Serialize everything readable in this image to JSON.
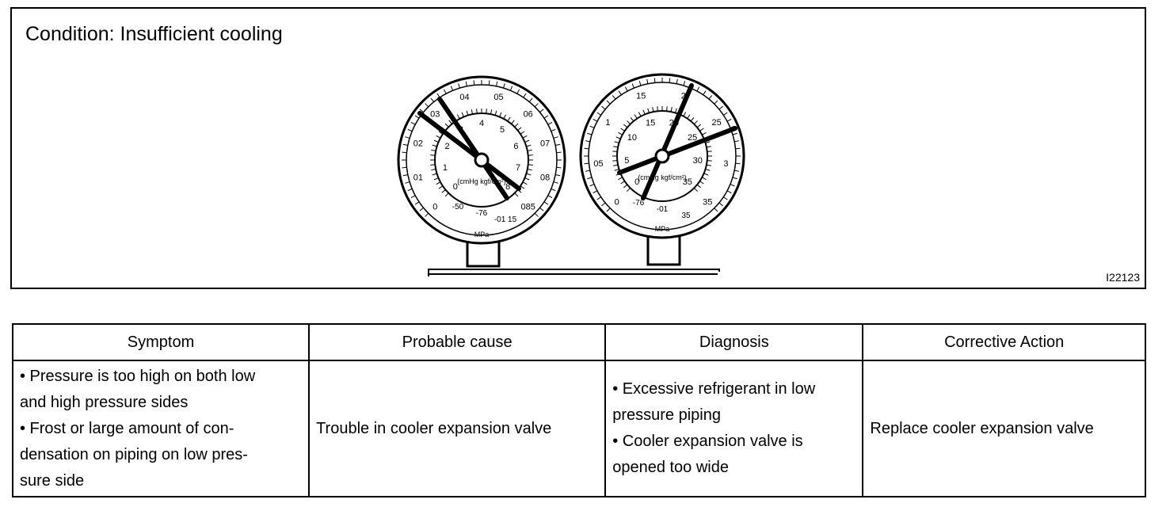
{
  "header": {
    "title": "Condition: Insufficient cooling",
    "figure_id": "I22123"
  },
  "gauges": [
    {
      "outer_scale": [
        "0",
        "01",
        "02",
        "03",
        "04",
        "05",
        "06",
        "07",
        "08",
        "085"
      ],
      "inner_scale": [
        "0",
        "1",
        "2",
        "3",
        "4",
        "5",
        "6",
        "7",
        "8"
      ],
      "bottom": [
        "-50",
        "-76",
        "-01 15"
      ],
      "inner_unit": "(cmHg kgf/cm²)",
      "unit": "MPa"
    },
    {
      "outer_scale": [
        "0",
        "05",
        "1",
        "15",
        "2",
        "25",
        "3",
        "35"
      ],
      "inner_scale": [
        "0",
        "5",
        "10",
        "15",
        "20",
        "25",
        "30",
        "35"
      ],
      "bottom": [
        "-76",
        "-01",
        "35"
      ],
      "inner_unit": "(cmHg kgf/cm²)",
      "unit": "MPa"
    }
  ],
  "table": {
    "headers": [
      "Symptom",
      "Probable cause",
      "Diagnosis",
      "Corrective Action"
    ],
    "rows": [
      [
        [
          "• Pressure is too high on both low",
          "and high pressure sides",
          "• Frost or large amount of con-",
          "densation on piping on low pres-",
          "sure side"
        ],
        [
          "Trouble in cooler expansion valve"
        ],
        [
          "• Excessive refrigerant in low",
          "pressure piping",
          "• Cooler expansion valve is",
          "opened too wide"
        ],
        [
          "Replace cooler expansion valve"
        ]
      ]
    ]
  }
}
